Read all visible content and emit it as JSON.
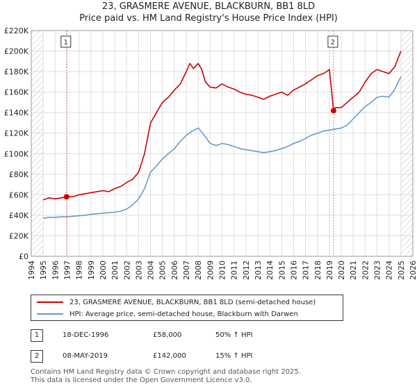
{
  "title": "23, GRASMERE AVENUE, BLACKBURN, BB1 8LD",
  "subtitle": "Price paid vs. HM Land Registry's House Price Index (HPI)",
  "colors": {
    "property": "#cc0000",
    "hpi": "#6699cc",
    "grid": "#dddddd",
    "hatch": "#bbbbbb",
    "marker": "#cc0000",
    "vline": "#e87070"
  },
  "legend": {
    "property_label": "23, GRASMERE AVENUE, BLACKBURN, BB1 8LD (semi-detached house)",
    "hpi_label": "HPI: Average price, semi-detached house, Blackburn with Darwen"
  },
  "sales": [
    {
      "num": "1",
      "date": "18-DEC-1996",
      "price": "£58,000",
      "hpi": "50% ↑ HPI"
    },
    {
      "num": "2",
      "date": "08-MAY-2019",
      "price": "£142,000",
      "hpi": "15% ↑ HPI"
    }
  ],
  "footer": {
    "line1": "Contains HM Land Registry data © Crown copyright and database right 2025.",
    "line2": "This data is licensed under the Open Government Licence v3.0."
  },
  "chart_data": {
    "type": "line",
    "title": "23, GRASMERE AVENUE, BLACKBURN, BB1 8LD",
    "subtitle": "Price paid vs. HM Land Registry's House Price Index (HPI)",
    "xlabel": "",
    "ylabel": "",
    "xlim": [
      1994,
      2026
    ],
    "ylim": [
      0,
      220000
    ],
    "x_ticks": [
      1994,
      1995,
      1996,
      1997,
      1998,
      1999,
      2000,
      2001,
      2002,
      2003,
      2004,
      2005,
      2006,
      2007,
      2008,
      2009,
      2010,
      2011,
      2012,
      2013,
      2014,
      2015,
      2016,
      2017,
      2018,
      2019,
      2020,
      2021,
      2022,
      2023,
      2024,
      2025,
      2026
    ],
    "y_ticks": [
      0,
      20000,
      40000,
      60000,
      80000,
      100000,
      120000,
      140000,
      160000,
      180000,
      200000,
      220000
    ],
    "y_tick_labels": [
      "£0",
      "£20K",
      "£40K",
      "£60K",
      "£80K",
      "£100K",
      "£120K",
      "£140K",
      "£160K",
      "£180K",
      "£200K",
      "£220K"
    ],
    "grid": true,
    "hatched_ranges": [
      [
        1994,
        1995
      ],
      [
        2025,
        2026
      ]
    ],
    "series": [
      {
        "name": "23, GRASMERE AVENUE, BLACKBURN, BB1 8LD (semi-detached house)",
        "color": "#cc0000",
        "x": [
          1995.0,
          1995.5,
          1996.0,
          1996.5,
          1996.96,
          1997.5,
          1998.0,
          1998.5,
          1999.0,
          1999.5,
          2000.0,
          2000.5,
          2001.0,
          2001.5,
          2002.0,
          2002.5,
          2003.0,
          2003.5,
          2004.0,
          2004.5,
          2005.0,
          2005.5,
          2006.0,
          2006.5,
          2007.0,
          2007.3,
          2007.6,
          2008.0,
          2008.3,
          2008.6,
          2009.0,
          2009.5,
          2010.0,
          2010.5,
          2011.0,
          2011.5,
          2012.0,
          2012.5,
          2013.0,
          2013.5,
          2014.0,
          2014.5,
          2015.0,
          2015.5,
          2016.0,
          2016.5,
          2017.0,
          2017.5,
          2018.0,
          2018.5,
          2019.0,
          2019.2,
          2019.35,
          2019.5,
          2020.0,
          2020.5,
          2021.0,
          2021.5,
          2022.0,
          2022.5,
          2023.0,
          2023.5,
          2024.0,
          2024.5,
          2025.0
        ],
        "y": [
          55000,
          57000,
          56000,
          57000,
          58000,
          58000,
          60000,
          61000,
          62000,
          63000,
          64000,
          63000,
          66000,
          68000,
          72000,
          75000,
          82000,
          100000,
          130000,
          140000,
          150000,
          155000,
          162000,
          168000,
          180000,
          188000,
          183000,
          188000,
          182000,
          170000,
          165000,
          164000,
          168000,
          165000,
          163000,
          160000,
          158000,
          157000,
          155000,
          153000,
          156000,
          158000,
          160000,
          157000,
          162000,
          165000,
          168000,
          172000,
          176000,
          178000,
          182000,
          160000,
          142000,
          145000,
          145000,
          150000,
          155000,
          160000,
          170000,
          178000,
          182000,
          180000,
          178000,
          185000,
          200000
        ]
      },
      {
        "name": "HPI: Average price, semi-detached house, Blackburn with Darwen",
        "color": "#6699cc",
        "x": [
          1995.0,
          1995.5,
          1996.0,
          1996.5,
          1997.0,
          1997.5,
          1998.0,
          1998.5,
          1999.0,
          1999.5,
          2000.0,
          2000.5,
          2001.0,
          2001.5,
          2002.0,
          2002.5,
          2003.0,
          2003.5,
          2004.0,
          2004.5,
          2005.0,
          2005.5,
          2006.0,
          2006.5,
          2007.0,
          2007.5,
          2008.0,
          2008.5,
          2009.0,
          2009.5,
          2010.0,
          2010.5,
          2011.0,
          2011.5,
          2012.0,
          2012.5,
          2013.0,
          2013.5,
          2014.0,
          2014.5,
          2015.0,
          2015.5,
          2016.0,
          2016.5,
          2017.0,
          2017.5,
          2018.0,
          2018.5,
          2019.0,
          2019.5,
          2020.0,
          2020.5,
          2021.0,
          2021.5,
          2022.0,
          2022.5,
          2023.0,
          2023.5,
          2024.0,
          2024.5,
          2025.0
        ],
        "y": [
          37000,
          38000,
          38000,
          38500,
          38500,
          39000,
          39500,
          40000,
          41000,
          41500,
          42000,
          42500,
          43000,
          44000,
          46000,
          50000,
          56000,
          66000,
          82000,
          88000,
          95000,
          100000,
          105000,
          112000,
          118000,
          122000,
          125000,
          118000,
          110000,
          108000,
          110000,
          109000,
          107000,
          105000,
          104000,
          103000,
          102000,
          101000,
          102000,
          103000,
          105000,
          107000,
          110000,
          112000,
          115000,
          118000,
          120000,
          122000,
          123000,
          124000,
          125000,
          128000,
          134000,
          140000,
          146000,
          150000,
          155000,
          156000,
          155000,
          163000,
          175000
        ]
      }
    ],
    "sale_markers": [
      {
        "label": "1",
        "x": 1996.96,
        "y": 58000
      },
      {
        "label": "2",
        "x": 2019.35,
        "y": 142000
      }
    ]
  }
}
